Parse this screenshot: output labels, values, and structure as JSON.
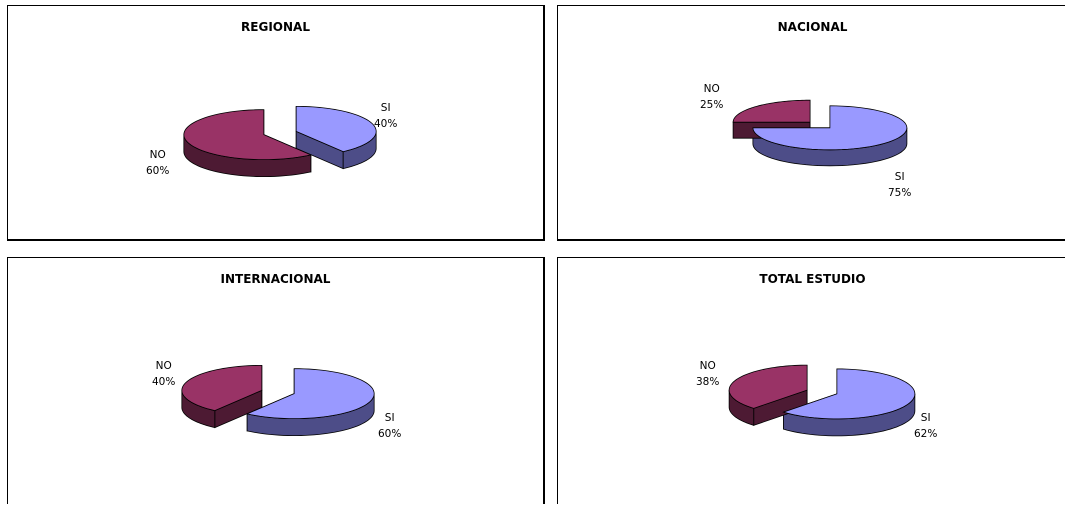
{
  "colors": {
    "si": "#9999ff",
    "si_side": "#4d4d88",
    "no": "#993366",
    "no_side": "#4d1a33"
  },
  "chart_data": [
    {
      "type": "pie",
      "title": "REGIONAL",
      "categories": [
        "SI",
        "NO"
      ],
      "values": [
        40,
        60
      ],
      "labels": [
        "40%",
        "60%"
      ]
    },
    {
      "type": "pie",
      "title": "NACIONAL",
      "categories": [
        "SI",
        "NO"
      ],
      "values": [
        75,
        25
      ],
      "labels": [
        "75%",
        "25%"
      ]
    },
    {
      "type": "pie",
      "title": "INTERNACIONAL",
      "categories": [
        "SI",
        "NO"
      ],
      "values": [
        60,
        40
      ],
      "labels": [
        "60%",
        "40%"
      ]
    },
    {
      "type": "pie",
      "title": "TOTAL ESTUDIO",
      "categories": [
        "SI",
        "NO"
      ],
      "values": [
        62,
        38
      ],
      "labels": [
        "62%",
        "38%"
      ]
    }
  ]
}
